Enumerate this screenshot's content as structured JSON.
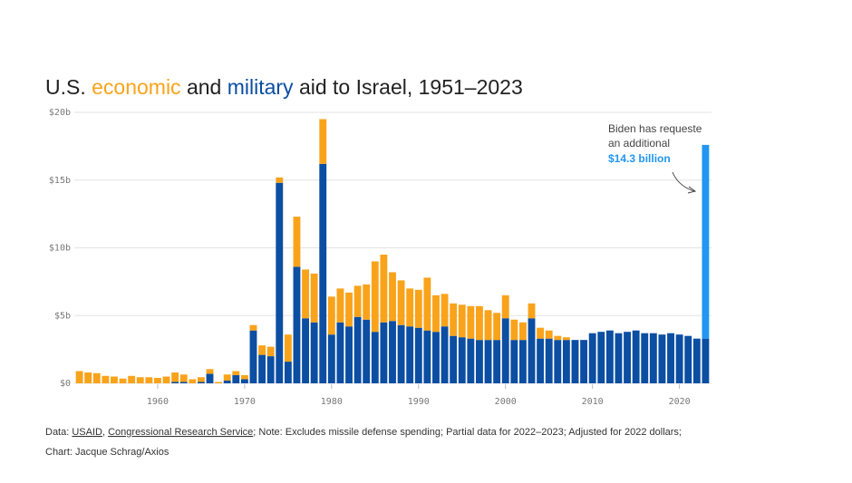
{
  "chart_data": {
    "type": "bar",
    "stacked": true,
    "title_parts": [
      "U.S. ",
      " and ",
      " aid to Israel, 1951–2023"
    ],
    "x": [
      1951,
      1952,
      1953,
      1954,
      1955,
      1956,
      1957,
      1958,
      1959,
      1960,
      1961,
      1962,
      1963,
      1964,
      1965,
      1966,
      1967,
      1968,
      1969,
      1970,
      1971,
      1972,
      1973,
      1974,
      1975,
      1976,
      1977,
      1978,
      1979,
      1980,
      1981,
      1982,
      1983,
      1984,
      1985,
      1986,
      1987,
      1988,
      1989,
      1990,
      1991,
      1992,
      1993,
      1994,
      1995,
      1996,
      1997,
      1998,
      1999,
      2000,
      2001,
      2002,
      2003,
      2004,
      2005,
      2006,
      2007,
      2008,
      2009,
      2010,
      2011,
      2012,
      2013,
      2014,
      2015,
      2016,
      2017,
      2018,
      2019,
      2020,
      2021,
      2022,
      2023
    ],
    "series": [
      {
        "name": "military",
        "color": "#0b4ea2",
        "values": [
          0,
          0,
          0,
          0,
          0,
          0,
          0,
          0,
          0,
          0,
          0,
          0.1,
          0.1,
          0,
          0.1,
          0.7,
          0,
          0.2,
          0.6,
          0.3,
          3.9,
          2.1,
          2.0,
          14.8,
          1.6,
          8.6,
          4.8,
          4.5,
          16.2,
          3.6,
          4.5,
          4.2,
          4.9,
          4.7,
          3.8,
          4.5,
          4.6,
          4.3,
          4.2,
          4.1,
          3.9,
          3.8,
          4.2,
          3.5,
          3.4,
          3.3,
          3.2,
          3.2,
          3.2,
          4.8,
          3.2,
          3.2,
          4.8,
          3.3,
          3.3,
          3.2,
          3.2,
          3.2,
          3.2,
          3.7,
          3.8,
          3.9,
          3.7,
          3.8,
          3.9,
          3.7,
          3.7,
          3.6,
          3.7,
          3.6,
          3.5,
          3.3,
          3.3
        ]
      },
      {
        "name": "economic",
        "color": "#f9a31b",
        "values": [
          0.9,
          0.8,
          0.75,
          0.55,
          0.5,
          0.35,
          0.55,
          0.45,
          0.45,
          0.4,
          0.5,
          0.7,
          0.55,
          0.3,
          0.35,
          0.35,
          0.1,
          0.45,
          0.3,
          0.3,
          0.4,
          0.7,
          0.7,
          0.4,
          2.0,
          3.7,
          3.6,
          3.6,
          3.3,
          2.8,
          2.5,
          2.5,
          2.3,
          2.6,
          5.2,
          5.0,
          3.6,
          3.3,
          2.8,
          2.8,
          3.9,
          2.7,
          2.4,
          2.4,
          2.4,
          2.4,
          2.5,
          2.2,
          2.0,
          1.7,
          1.5,
          1.3,
          1.1,
          0.8,
          0.6,
          0.3,
          0.2,
          0,
          0,
          0,
          0,
          0,
          0,
          0,
          0,
          0,
          0,
          0,
          0,
          0,
          0,
          0,
          0
        ]
      }
    ],
    "annotation": {
      "text": [
        "Biden has requeste",
        "an additional"
      ],
      "x": 2023,
      "value": 14.3,
      "value_label": "$14.3 billion",
      "color": "#2196f3"
    },
    "xlim": [
      1950,
      2024
    ],
    "xticks": [
      1960,
      1970,
      1980,
      1990,
      2000,
      2010,
      2020
    ],
    "ylim": [
      0,
      20
    ],
    "yticks": [
      {
        "value": 0,
        "label": "$0"
      },
      {
        "value": 5,
        "label": "$5b"
      },
      {
        "value": 10,
        "label": "$10b"
      },
      {
        "value": 15,
        "label": "$15b"
      },
      {
        "value": 20,
        "label": "$20b"
      }
    ],
    "grid": true,
    "footer": {
      "line1": [
        "Data: ",
        "USAID",
        ", ",
        "Congressional Research Service",
        "; Note: Excludes missile defense spending; Partial data for 2022–2023; Adjusted for 2022 dollars;"
      ],
      "line2": "Chart: Jacque Schrag/Axios"
    }
  }
}
